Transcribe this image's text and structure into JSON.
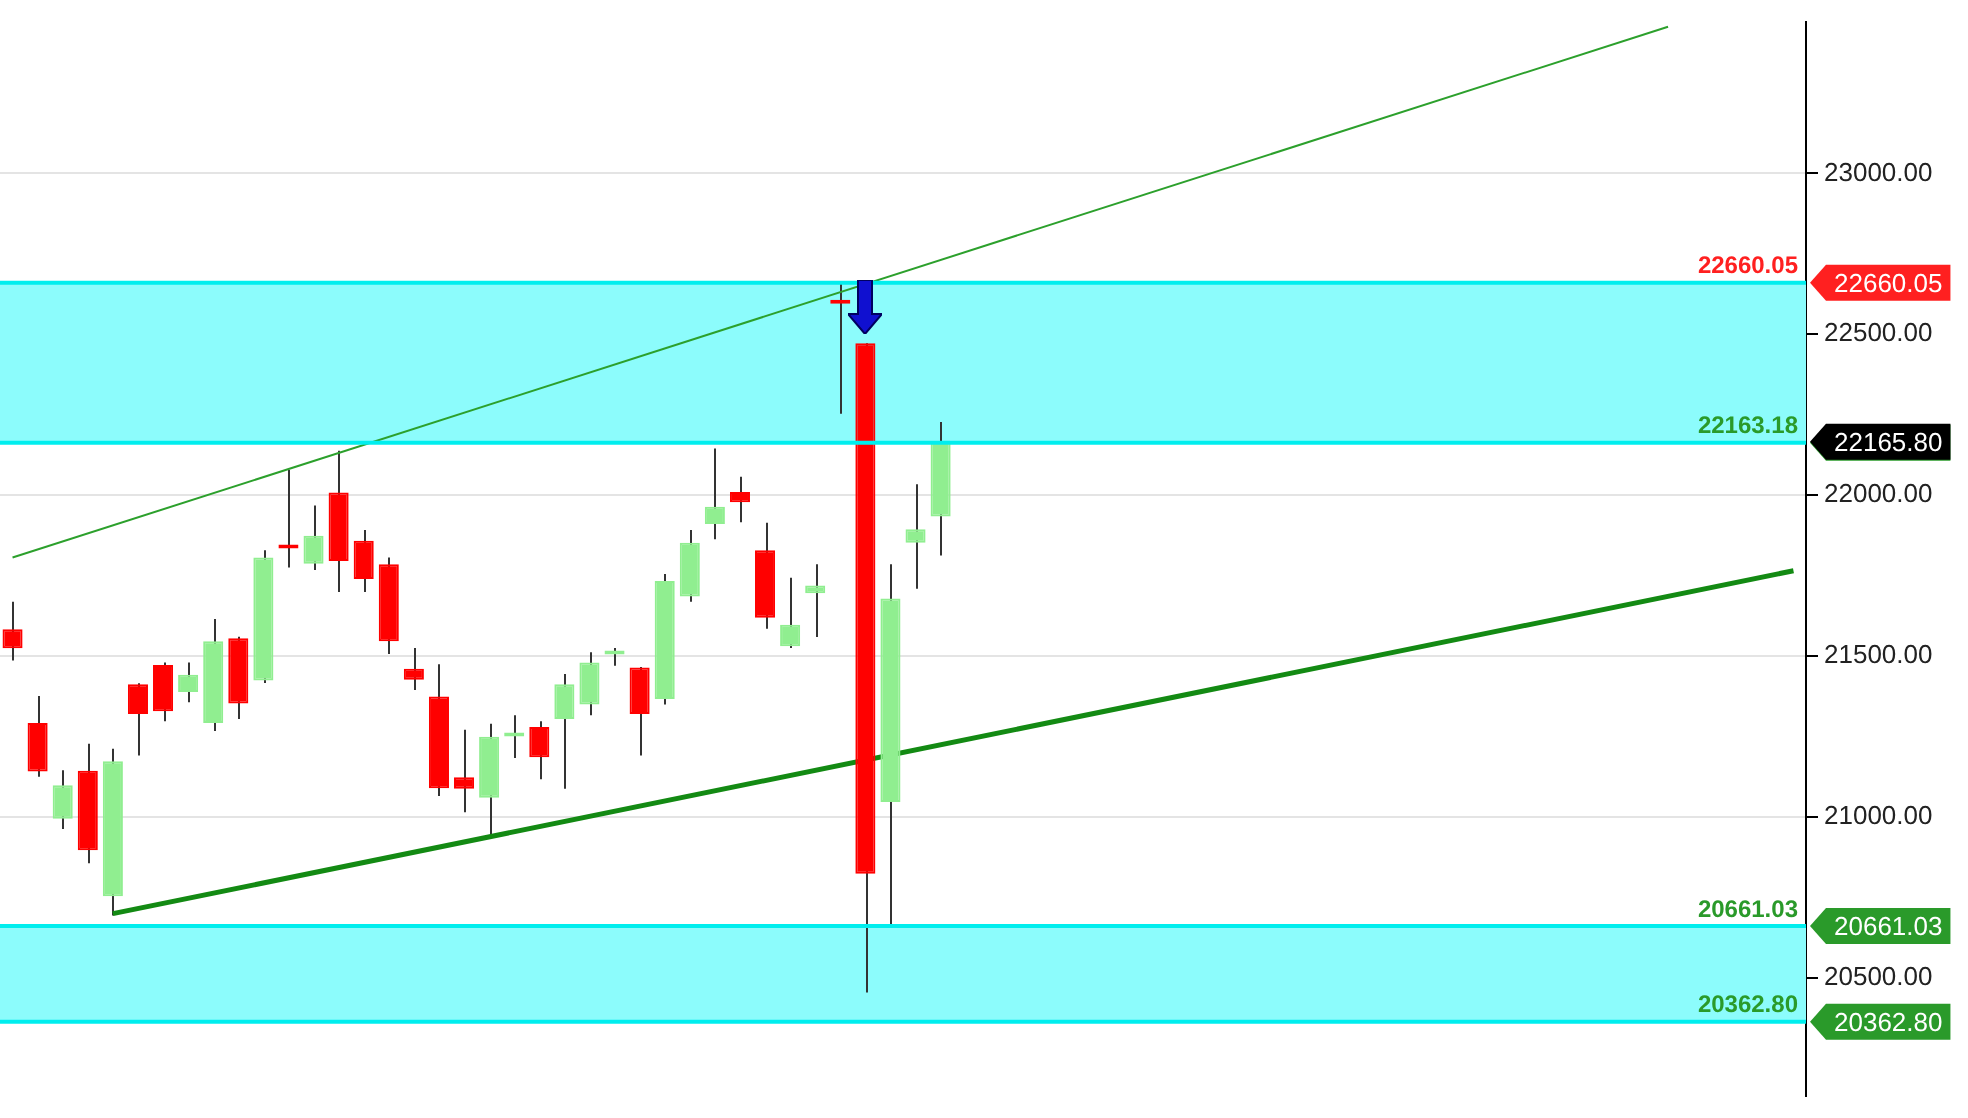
{
  "chart_data": {
    "type": "candlestick",
    "categories": [
      null,
      null,
      null,
      null,
      null,
      null,
      null,
      null,
      null,
      null,
      null,
      null,
      null,
      null,
      null,
      null,
      null,
      null,
      null,
      null,
      null,
      null,
      null,
      null,
      null,
      null,
      null,
      null,
      null,
      null,
      null,
      null,
      null,
      null,
      null,
      null,
      null,
      null,
      null,
      null,
      null,
      null,
      null,
      null,
      null,
      null,
      null,
      null,
      null,
      null,
      null,
      null,
      null,
      null,
      null,
      null,
      null,
      null,
      null,
      null,
      null,
      null,
      null,
      null,
      null,
      null,
      null,
      null,
      null,
      null,
      null,
      null
    ],
    "ohlc": [
      [
        21583,
        21669,
        21486,
        21524
      ],
      [
        21292,
        21376,
        21125,
        21141
      ],
      [
        20994,
        21145,
        20962,
        21098
      ],
      [
        21143,
        21227,
        20856,
        20896
      ],
      [
        20753,
        21212,
        20693,
        21173
      ],
      [
        21412,
        21415,
        21191,
        21320
      ],
      [
        21472,
        21480,
        21297,
        21328
      ],
      [
        21388,
        21480,
        21356,
        21442
      ],
      [
        21292,
        21615,
        21267,
        21546
      ],
      [
        21555,
        21560,
        21304,
        21352
      ],
      [
        21424,
        21829,
        21416,
        21806
      ],
      [
        21840,
        22078,
        21775,
        21834
      ],
      [
        21787,
        21968,
        21767,
        21874
      ],
      [
        22008,
        22138,
        21699,
        21795
      ],
      [
        21858,
        21892,
        21699,
        21739
      ],
      [
        21785,
        21806,
        21506,
        21546
      ],
      [
        21460,
        21525,
        21394,
        21426
      ],
      [
        21374,
        21474,
        21065,
        21089
      ],
      [
        21123,
        21271,
        21014,
        21087
      ],
      [
        21059,
        21289,
        20940,
        21249
      ],
      [
        21250,
        21316,
        21183,
        21255
      ],
      [
        21279,
        21297,
        21117,
        21185
      ],
      [
        21304,
        21444,
        21087,
        21412
      ],
      [
        21349,
        21512,
        21316,
        21480
      ],
      [
        21505,
        21525,
        21470,
        21510
      ],
      [
        21464,
        21466,
        21191,
        21320
      ],
      [
        21366,
        21755,
        21349,
        21733
      ],
      [
        21685,
        21892,
        21669,
        21852
      ],
      [
        21910,
        22145,
        21863,
        21964
      ],
      [
        22010,
        22057,
        21916,
        21978
      ],
      [
        21829,
        21914,
        21585,
        21619
      ],
      [
        21530,
        21743,
        21525,
        21597
      ],
      [
        21695,
        21785,
        21559,
        21719
      ],
      [
        22600,
        22659,
        22253,
        22595
      ],
      [
        22472,
        22472,
        20454,
        20823
      ],
      [
        21046,
        21785,
        20659,
        21679
      ],
      [
        21852,
        22034,
        21709,
        21894
      ],
      [
        21934,
        22227,
        21812,
        22165.8
      ],
      null,
      null,
      null,
      null,
      null,
      null,
      null,
      null,
      null,
      null,
      null,
      null,
      null,
      null,
      null,
      null,
      null,
      null,
      null,
      null,
      null,
      null,
      null,
      null,
      null,
      null,
      null,
      null,
      null,
      null,
      null,
      null,
      null,
      null
    ],
    "colors": [
      "#ff0000",
      "#ff0000",
      "#90ee90",
      "#ff0000",
      "#90ee90",
      "#ff0000",
      "#ff0000",
      "#90ee90",
      "#90ee90",
      "#ff0000",
      "#90ee90",
      "#ff0000",
      "#90ee90",
      "#ff0000",
      "#ff0000",
      "#ff0000",
      "#ff0000",
      "#ff0000",
      "#ff0000",
      "#90ee90",
      "#90ee90",
      "#ff0000",
      "#90ee90",
      "#90ee90",
      "#90ee90",
      "#ff0000",
      "#90ee90",
      "#90ee90",
      "#90ee90",
      "#ff0000",
      "#ff0000",
      "#90ee90",
      "#90ee90",
      "#ff0000",
      "#ff0000",
      "#90ee90",
      "#90ee90",
      "#90ee90",
      null,
      null,
      null,
      null,
      null,
      null,
      null,
      null,
      null,
      null,
      null,
      null,
      null,
      null,
      null,
      null,
      null,
      null,
      null,
      null,
      null,
      null,
      null,
      null,
      null,
      null,
      null,
      null,
      null,
      null,
      null,
      null,
      null,
      null
    ],
    "series": [
      {
        "type": "line",
        "color": "#2ca02c",
        "values": [
          21806,
          null,
          null,
          null,
          null,
          null,
          null,
          null,
          null,
          null,
          null,
          null,
          null,
          null,
          null,
          null,
          null,
          null,
          null,
          null,
          null,
          null,
          null,
          null,
          null,
          null,
          null,
          null,
          null,
          null,
          null,
          null,
          null,
          null,
          null,
          null,
          null,
          null,
          null,
          null,
          null,
          null,
          null,
          null,
          null,
          null,
          null,
          null,
          null,
          null,
          null,
          null,
          null,
          null,
          null,
          null,
          null,
          null,
          null,
          null,
          null,
          null,
          null,
          null,
          null,
          null,
          23456,
          null,
          null,
          null,
          null,
          null
        ]
      },
      {
        "type": "line",
        "color": "#138a13",
        "values": [
          null,
          null,
          null,
          null,
          20699,
          null,
          null,
          null,
          null,
          null,
          null,
          null,
          null,
          null,
          null,
          null,
          null,
          null,
          null,
          null,
          null,
          null,
          null,
          null,
          null,
          null,
          null,
          null,
          null,
          null,
          null,
          null,
          null,
          null,
          null,
          null,
          null,
          null,
          null,
          null,
          null,
          null,
          null,
          null,
          null,
          null,
          null,
          null,
          null,
          null,
          null,
          null,
          null,
          null,
          null,
          null,
          null,
          null,
          null,
          null,
          null,
          null,
          null,
          null,
          null,
          null,
          null,
          null,
          null,
          null,
          null,
          21765
        ]
      }
    ],
    "ylim": [
      20131,
      23472
    ],
    "yticks": [
      {
        "value": 20500,
        "label": "20500.00"
      },
      {
        "value": 21000,
        "label": "21000.00"
      },
      {
        "value": 21500,
        "label": "21500.00"
      },
      {
        "value": 22000,
        "label": "22000.00"
      },
      {
        "value": 22500,
        "label": "22500.00"
      },
      {
        "value": 23000,
        "label": "23000.00"
      }
    ],
    "grid": "y",
    "tick_labels": "y",
    "bands": [
      {
        "axis": "y",
        "from": 20362.8,
        "to": 20661.03,
        "color": "#8cfcfc"
      },
      {
        "axis": "y",
        "from": 22163.18,
        "to": 22660.05,
        "color": "#8cfcfc"
      }
    ],
    "ref_lines": [
      {
        "axis": "y",
        "value": 22660.05,
        "label": "22660.05",
        "color": "#00eeee"
      },
      {
        "axis": "y",
        "value": 22163.18,
        "label": "22163.18",
        "color": "#00eeee"
      },
      {
        "axis": "y",
        "value": 20661.03,
        "label": "20661.03",
        "color": "#00eeee"
      },
      {
        "axis": "y",
        "value": 20362.8,
        "label": "20362.80",
        "color": "#00eeee"
      }
    ],
    "annotations": [
      "22165.80"
    ]
  }
}
